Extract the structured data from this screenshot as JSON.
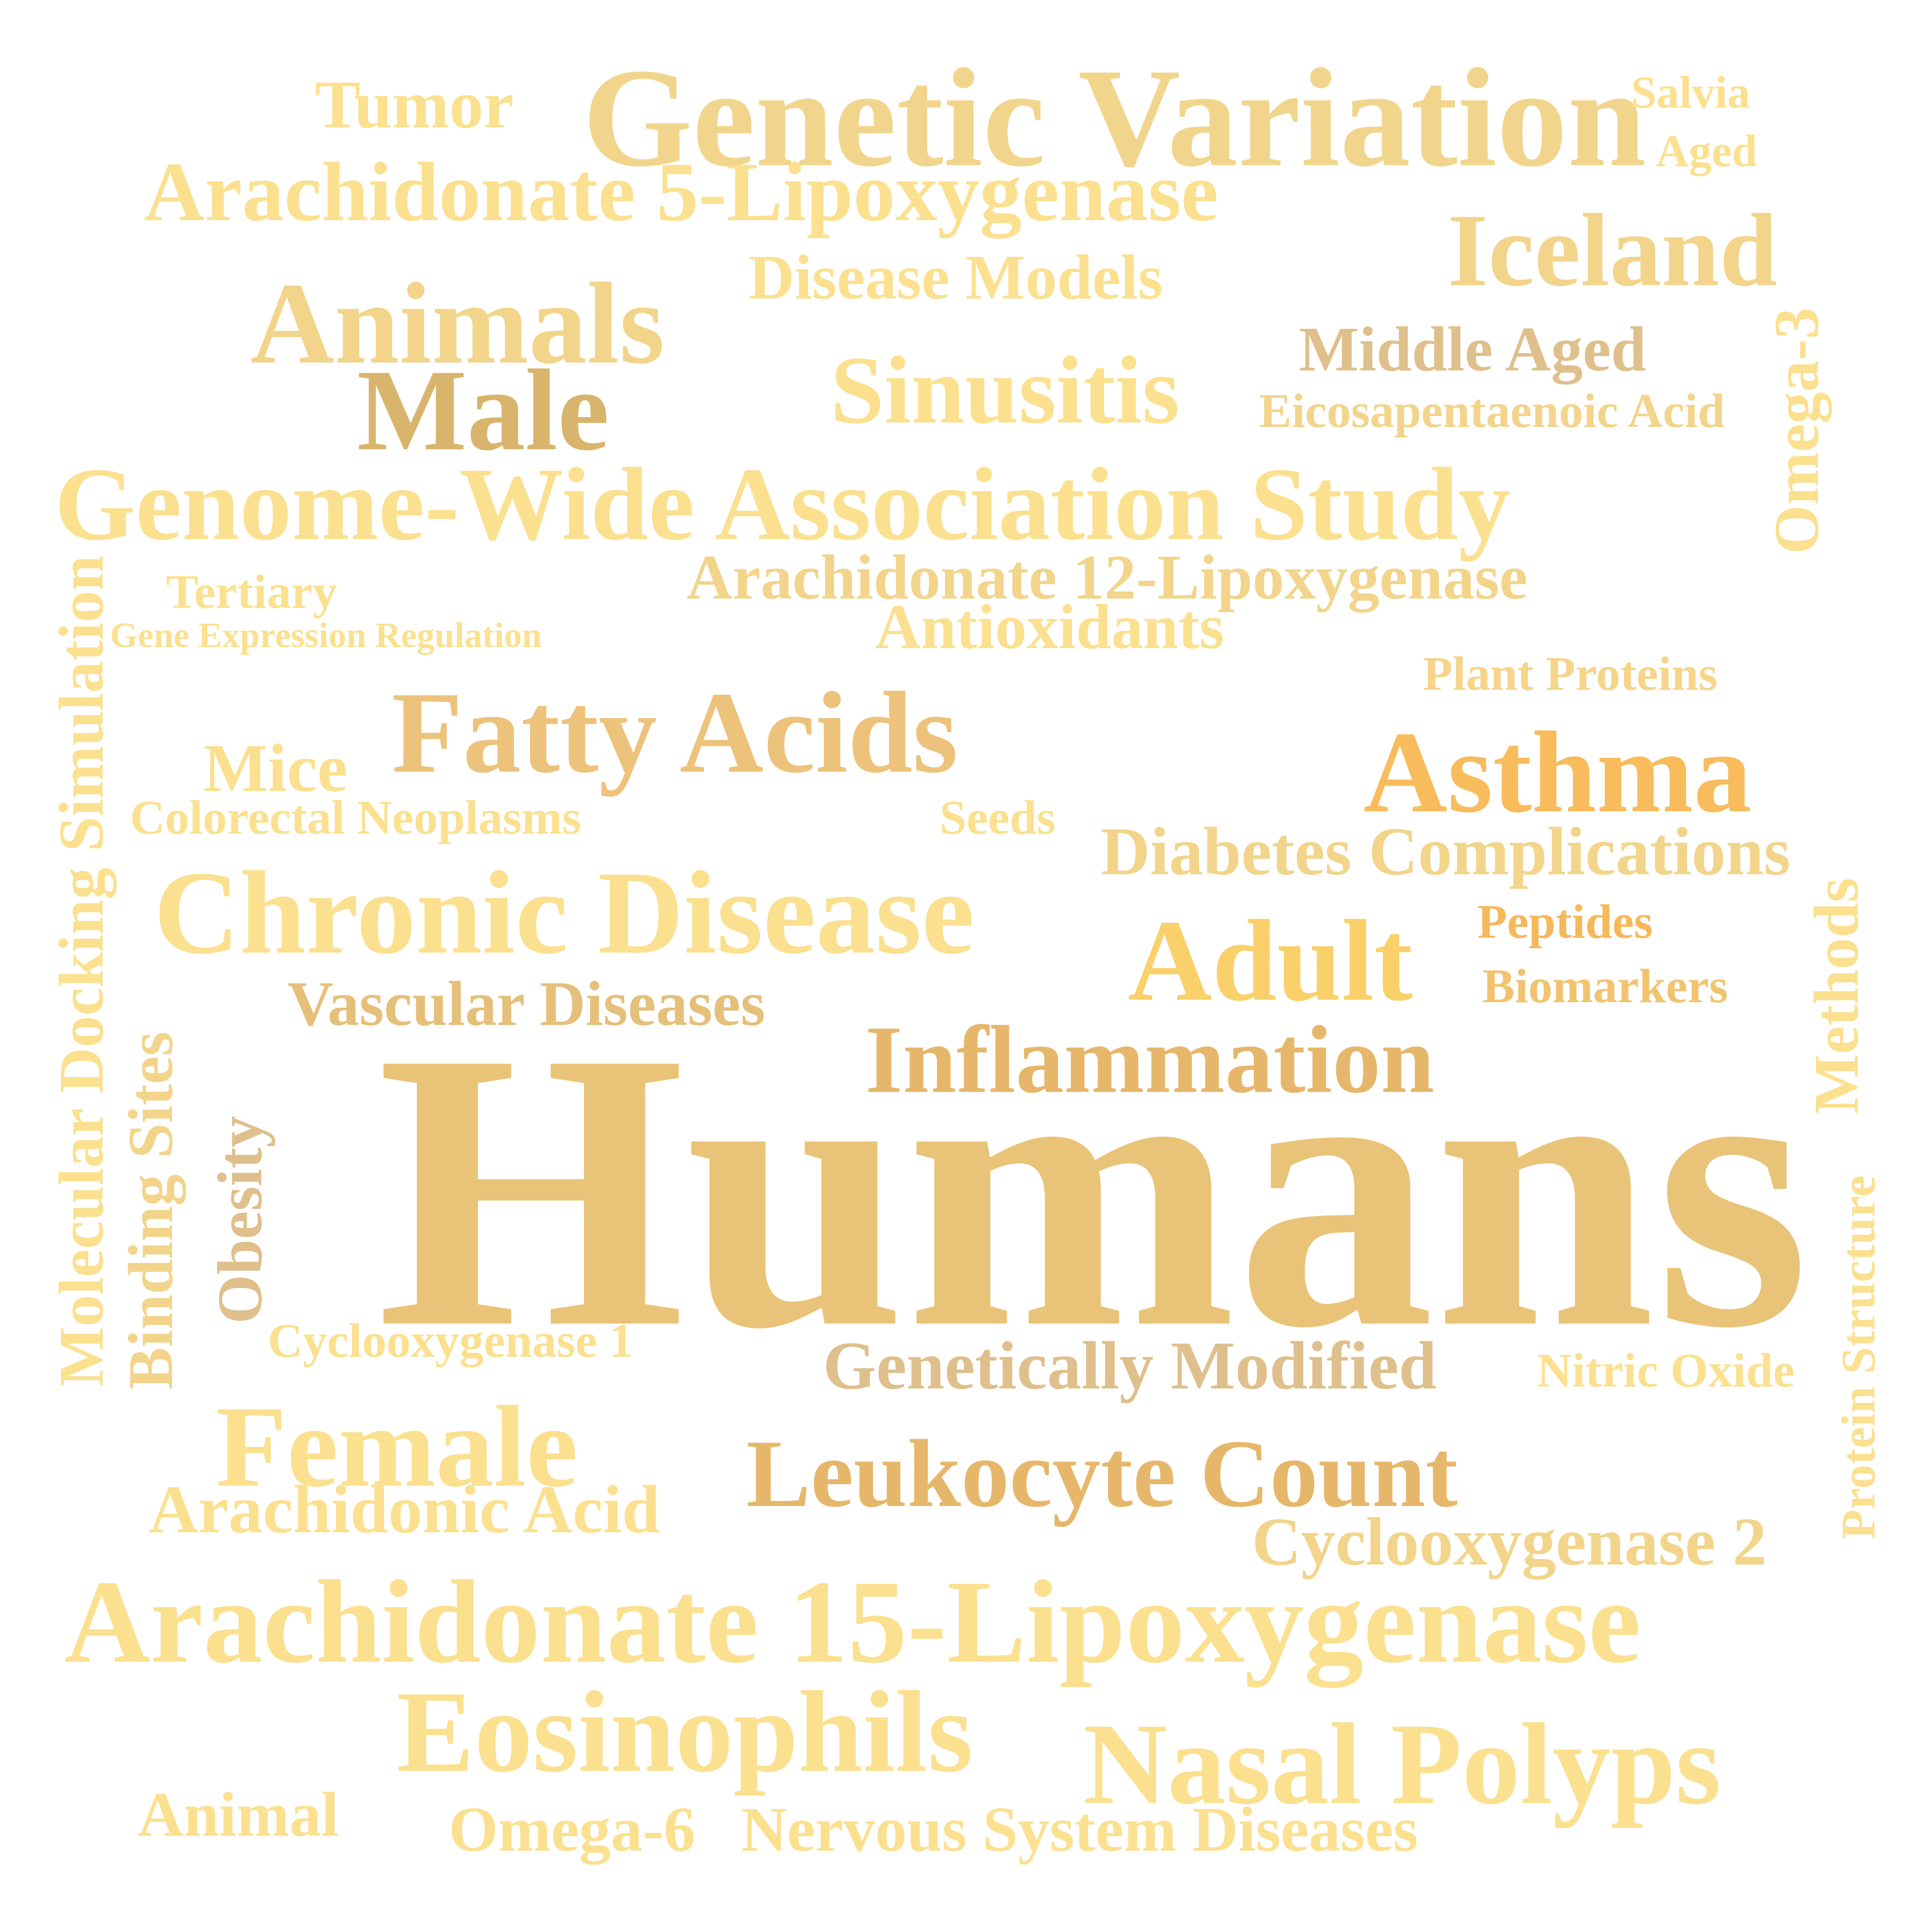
{
  "words": {
    "humans": "Humans",
    "genetic_variation": "Genetic Variation",
    "tumor": "Tumor",
    "salvia": "Salvia",
    "aged": "Aged",
    "arachidonate_5_lipoxygenase": "Arachidonate 5-Lipoxygenase",
    "iceland": "Iceland",
    "disease_models": "Disease Models",
    "animals": "Animals",
    "middle_aged": "Middle Aged",
    "sinusitis": "Sinusitis",
    "male": "Male",
    "eicosapentaenoic_acid": "Eicosapentaenoic Acid",
    "omega_3": "Omega-3",
    "genome_wide_association_study": "Genome-Wide Association Study",
    "arachidonate_12_lipoxygenase": "Arachidonate 12-Lipoxygenase",
    "tertiary": "Tertiary",
    "antioxidants": "Antioxidants",
    "gene_expression_regulation": "Gene Expression Regulation",
    "plant_proteins": "Plant Proteins",
    "molecular_docking_simulation": "Molecular Docking Simulation",
    "fatty_acids": "Fatty Acids",
    "asthma": "Asthma",
    "mice": "Mice",
    "colorectal_neoplasms": "Colorectal Neoplasms",
    "seeds": "Seeds",
    "diabetes_complications": "Diabetes Complications",
    "chronic_disease": "Chronic Disease",
    "methods": "Methods",
    "adult": "Adult",
    "peptides": "Peptides",
    "vascular_diseases": "Vascular Diseases",
    "biomarkers": "Biomarkers",
    "inflammation": "Inflammation",
    "binding_sites": "Binding Sites",
    "obesity": "Obesity",
    "protein_structure": "Protein Structure",
    "cyclooxygenase_1": "Cyclooxygenase 1",
    "genetically_modified": "Genetically Modified",
    "nitric_oxide": "Nitric Oxide",
    "female": "Female",
    "leukocyte_count": "Leukocyte Count",
    "arachidonic_acid": "Arachidonic Acid",
    "cyclooxygenase_2": "Cyclooxygenase 2",
    "arachidonate_15_lipoxygenase": "Arachidonate 15-Lipoxygenase",
    "eosinophils": "Eosinophils",
    "nasal_polyps": "Nasal Polyps",
    "animal": "Animal",
    "omega_6": "Omega-6",
    "nervous_system_diseases": "Nervous System Diseases"
  },
  "colors": {
    "background": "#ffffff",
    "light_gold": "#fbe08f",
    "mid_gold": "#f2d48b",
    "dark_gold": "#e9c377",
    "tan": "#dfbf8c",
    "orange": "#f8bc5c"
  }
}
